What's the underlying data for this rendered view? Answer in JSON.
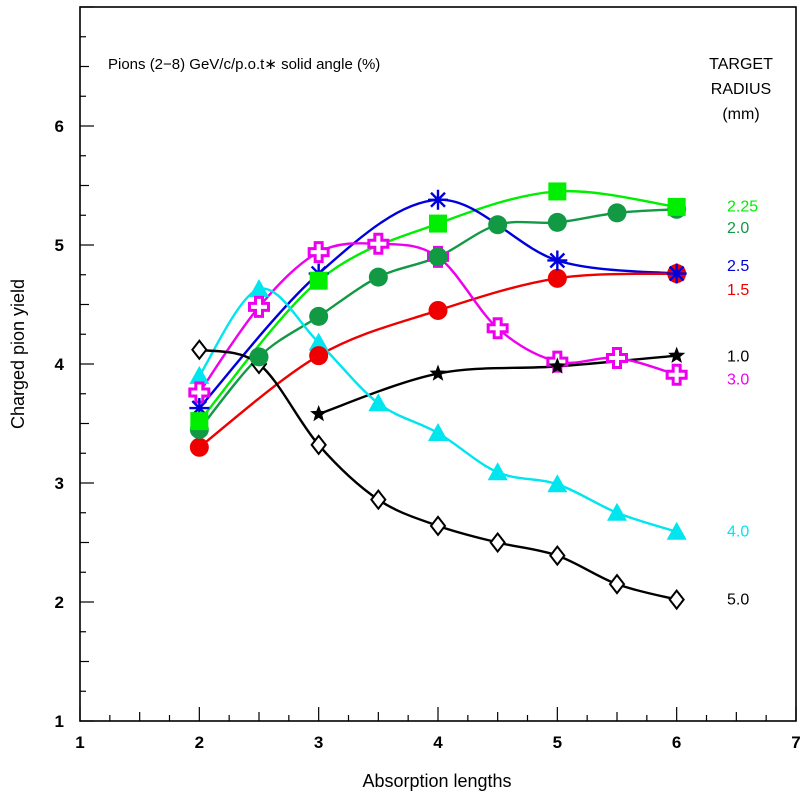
{
  "chart_data": {
    "type": "line",
    "xlabel": "Absorption lengths",
    "ylabel": "Charged pion yield",
    "annotation": "Pions (2−8) GeV/c/p.o.t∗ solid angle (%)",
    "legend_title_lines": [
      "TARGET",
      "RADIUS",
      "(mm)"
    ],
    "xlim": [
      1,
      7
    ],
    "ylim": [
      1,
      7
    ],
    "x_ticks": [
      1,
      2,
      3,
      4,
      5,
      6,
      7
    ],
    "y_ticks": [
      1,
      2,
      3,
      4,
      5,
      6
    ],
    "x_tick_labels": [
      "1",
      "2",
      "3",
      "4",
      "5",
      "6",
      "7"
    ],
    "y_tick_labels": [
      "1",
      "2",
      "3",
      "4",
      "5",
      "6"
    ],
    "grid": false,
    "legend_placement": "right",
    "series": [
      {
        "name": "2.25",
        "color": "#00ee00",
        "marker": "square",
        "x": [
          2,
          3,
          4,
          5,
          6
        ],
        "y": [
          3.52,
          4.7,
          5.18,
          5.45,
          5.32
        ]
      },
      {
        "name": "2.0",
        "color": "#119944",
        "marker": "circle",
        "x": [
          2,
          2.5,
          3,
          3.5,
          4,
          4.5,
          5,
          5.5,
          6
        ],
        "y": [
          3.45,
          4.06,
          4.4,
          4.73,
          4.9,
          5.17,
          5.19,
          5.27,
          5.3
        ]
      },
      {
        "name": "2.5",
        "color": "#0000dd",
        "marker": "asterisk",
        "x": [
          2,
          3,
          4,
          5,
          6
        ],
        "y": [
          3.63,
          4.76,
          5.38,
          4.87,
          4.76
        ]
      },
      {
        "name": "1.5",
        "color": "#ee0000",
        "marker": "circle",
        "x": [
          2,
          3,
          4,
          5,
          6
        ],
        "y": [
          3.3,
          4.07,
          4.45,
          4.72,
          4.76
        ]
      },
      {
        "name": "1.0",
        "color": "#000000",
        "marker": "star",
        "x": [
          3,
          4,
          5,
          6
        ],
        "y": [
          3.58,
          3.92,
          3.98,
          4.07
        ]
      },
      {
        "name": "3.0",
        "color": "#ee00ee",
        "marker": "cross",
        "x": [
          2,
          2.5,
          3,
          3.5,
          4,
          4.5,
          5,
          5.5,
          6
        ],
        "y": [
          3.76,
          4.48,
          4.94,
          5.01,
          4.9,
          4.3,
          4.02,
          4.05,
          3.91
        ]
      },
      {
        "name": "4.0",
        "color": "#00e5ee",
        "marker": "triangle",
        "x": [
          2,
          2.5,
          3,
          3.5,
          4,
          4.5,
          5,
          5.5,
          6
        ],
        "y": [
          3.9,
          4.63,
          4.18,
          3.67,
          3.42,
          3.09,
          2.99,
          2.75,
          2.59
        ]
      },
      {
        "name": "5.0",
        "color": "#000000",
        "marker": "diamond",
        "x": [
          2,
          2.5,
          3,
          3.5,
          4,
          4.5,
          5,
          5.5,
          6
        ],
        "y": [
          4.12,
          4.0,
          3.32,
          2.86,
          2.64,
          2.5,
          2.39,
          2.15,
          2.02
        ]
      }
    ],
    "series_label_y": [
      5.33,
      5.15,
      4.83,
      4.63,
      4.07,
      3.88,
      2.6,
      2.03
    ]
  }
}
